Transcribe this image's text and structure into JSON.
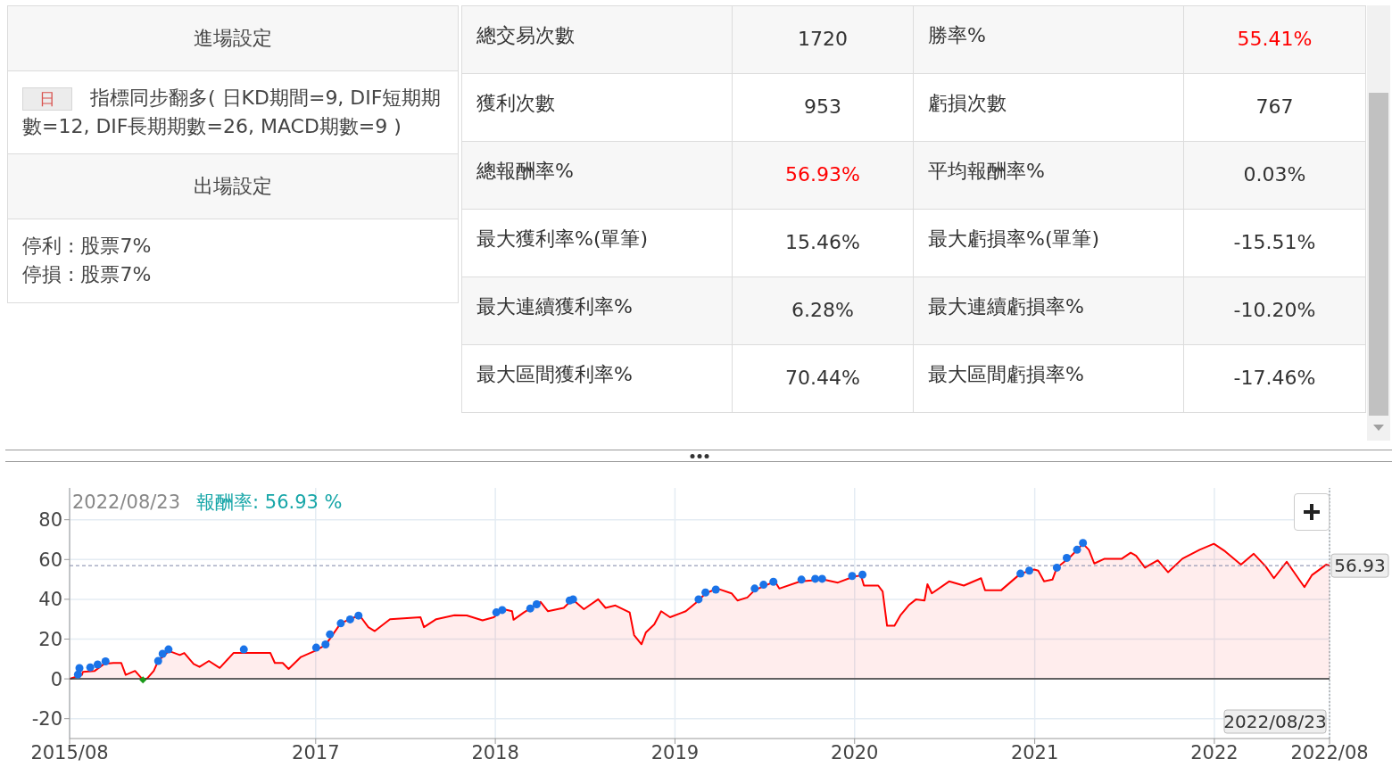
{
  "chart_data": [
    {
      "type": "other",
      "annotations": [
        "進場設定",
        "日",
        "指標同步翻多( 日KD期間=9, DIF短期期數=12, DIF長期期數=26, MACD期數=9 )",
        "出場設定",
        "停利 : 股票7%",
        "停損 : 股票7%",
        "總交易次數",
        "1720",
        "勝率%",
        "55.41%",
        "獲利次數",
        "953",
        "虧損次數",
        "767",
        "總報酬率%",
        "56.93%",
        "平均報酬率%",
        "0.03%",
        "最大獲利率%(單筆)",
        "15.46%",
        "最大虧損率%(單筆)",
        "-15.51%",
        "最大連續獲利率%",
        "6.28%",
        "最大連續虧損率%",
        "-10.20%",
        "最大區間獲利率%",
        "70.44%",
        "最大區間虧損率%",
        "-17.46%"
      ],
      "colors": [
        "#333333",
        "#333333",
        "#333333",
        "#ff0000",
        "#333333",
        "#333333",
        "#333333",
        "#333333",
        "#333333",
        "#ff0000",
        "#333333",
        "#333333",
        "#333333",
        "#333333",
        "#333333",
        "#333333",
        "#333333",
        "#333333",
        "#333333",
        "#333333",
        "#333333",
        "#333333",
        "#333333",
        "#333333"
      ]
    },
    {
      "type": "line",
      "annotations": [
        "2022/08/23",
        "報酬率: 56.93 %"
      ],
      "xlim": [
        "2015-08-20",
        "2022-08-23"
      ],
      "xticks": [
        {
          "value": "2015-08-20",
          "label": "2015/08"
        },
        {
          "value": "2017-01-01",
          "label": "2017"
        },
        {
          "value": "2018-01-01",
          "label": "2018"
        },
        {
          "value": "2019-01-01",
          "label": "2019"
        },
        {
          "value": "2020-01-01",
          "label": "2020"
        },
        {
          "value": "2021-01-01",
          "label": "2021"
        },
        {
          "value": "2022-01-01",
          "label": "2022"
        },
        {
          "value": "2022-08-23",
          "label": "2022/08"
        }
      ],
      "ylim": [
        -30,
        96
      ],
      "yticks": [
        -20,
        0,
        20,
        40,
        60,
        80
      ],
      "grid": true,
      "ref_lines": [
        {
          "axis": "y",
          "value": 0,
          "color": "#333333",
          "line_style": "solid"
        },
        {
          "axis": "y",
          "value": 56.93,
          "label": "56.93",
          "color": "#7f86a8",
          "line_style": "dashed"
        },
        {
          "axis": "x",
          "value": "2022-08-23",
          "label": "2022/08/23",
          "color": "#888888",
          "line_style": "dotted"
        }
      ],
      "series": [
        {
          "type": "area",
          "color": "#ff0000",
          "x": [
            "2015-08-20",
            "2015-09-14",
            "2015-09-16",
            "2015-10-10",
            "2015-10-29",
            "2015-11-17",
            "2015-12-03",
            "2015-12-12",
            "2015-12-31",
            "2016-01-16",
            "2016-01-25",
            "2016-02-07",
            "2016-02-16",
            "2016-03-09",
            "2016-03-31",
            "2016-04-09",
            "2016-04-28",
            "2016-05-10",
            "2016-05-29",
            "2016-06-20",
            "2016-07-18",
            "2016-08-18",
            "2016-10-01",
            "2016-10-10",
            "2016-10-26",
            "2016-11-07",
            "2016-12-02",
            "2016-12-30",
            "2017-01-21",
            "2017-02-21",
            "2017-03-31",
            "2017-04-18",
            "2017-05-01",
            "2017-06-01",
            "2017-08-02",
            "2017-08-09",
            "2017-09-03",
            "2017-10-10",
            "2017-11-04",
            "2017-12-06",
            "2017-12-29",
            "2018-01-18",
            "2018-02-04",
            "2018-02-07",
            "2018-02-28",
            "2018-04-03",
            "2018-04-18",
            "2018-05-20",
            "2018-06-07",
            "2018-06-30",
            "2018-07-29",
            "2018-08-13",
            "2018-09-02",
            "2018-10-01",
            "2018-10-10",
            "2018-10-25",
            "2018-11-03",
            "2018-11-20",
            "2018-12-04",
            "2018-12-22",
            "2019-01-23",
            "2019-02-15",
            "2019-03-04",
            "2019-03-28",
            "2019-04-26",
            "2019-05-08",
            "2019-05-28",
            "2019-06-12",
            "2019-07-23",
            "2019-08-01",
            "2019-09-13",
            "2019-10-30",
            "2019-11-28",
            "2019-12-30",
            "2020-01-14",
            "2020-01-20",
            "2020-02-18",
            "2020-02-27",
            "2020-03-07",
            "2020-03-22",
            "2020-04-03",
            "2020-04-20",
            "2020-05-05",
            "2020-05-22",
            "2020-05-28",
            "2020-06-06",
            "2020-07-11",
            "2020-08-10",
            "2020-09-14",
            "2020-09-22",
            "2020-10-25",
            "2020-12-03",
            "2020-12-31",
            "2021-01-08",
            "2021-01-20",
            "2021-02-06",
            "2021-02-15",
            "2021-03-13",
            "2021-04-09",
            "2021-04-21",
            "2021-05-02",
            "2021-05-23",
            "2021-06-27",
            "2021-07-15",
            "2021-07-26",
            "2021-08-13",
            "2021-09-08",
            "2021-09-29",
            "2021-10-28",
            "2021-12-02",
            "2021-12-31",
            "2022-01-23",
            "2022-02-24",
            "2022-03-22",
            "2022-04-15",
            "2022-05-02",
            "2022-05-28",
            "2022-07-03",
            "2022-07-18",
            "2022-08-16",
            "2022-08-23"
          ],
          "values": [
            0,
            2,
            3.5,
            4,
            7.5,
            8,
            8,
            2,
            4,
            -0.5,
            0.3,
            4,
            9,
            14,
            12,
            13,
            7.5,
            6,
            9,
            5.5,
            13,
            13,
            13,
            8,
            8,
            5,
            11,
            14,
            17,
            28,
            32,
            26,
            24,
            30,
            31,
            26,
            30,
            32,
            31.9,
            29.4,
            31,
            35,
            34,
            29.7,
            33.4,
            38.7,
            34,
            35.7,
            40,
            35,
            40,
            35.7,
            36.9,
            33.4,
            22,
            17.4,
            23.4,
            27.4,
            34,
            31,
            34,
            38.7,
            43,
            45.4,
            43,
            39.4,
            40.9,
            44.6,
            49,
            45.4,
            49,
            49.9,
            48.4,
            51.4,
            52,
            46.9,
            46.9,
            43.9,
            26.7,
            26.7,
            31.9,
            37,
            40,
            39.4,
            47.6,
            43,
            49,
            46.9,
            50.6,
            44.6,
            44.6,
            52.9,
            55,
            54.4,
            49,
            49.9,
            55.9,
            61,
            67.9,
            64.9,
            58,
            60.4,
            60.4,
            63.4,
            61.9,
            55.9,
            59.6,
            53.6,
            60.4,
            64.9,
            67.9,
            64.1,
            57.4,
            62.9,
            56.6,
            50.6,
            58.9,
            46.1,
            52.1,
            57.4,
            56.93
          ]
        },
        {
          "type": "scatter",
          "color": "#1a73e8",
          "marker": "circle",
          "x": [
            "2015-09-06",
            "2015-09-09",
            "2015-10-01",
            "2015-10-16",
            "2015-11-01",
            "2016-02-16",
            "2016-02-25",
            "2016-03-08",
            "2016-08-08",
            "2017-01-02",
            "2017-01-21",
            "2017-01-30",
            "2017-02-21",
            "2017-03-12",
            "2017-03-29",
            "2018-01-03",
            "2018-01-15",
            "2018-03-13",
            "2018-03-26",
            "2018-06-01",
            "2018-06-08",
            "2019-02-18",
            "2019-03-04",
            "2019-03-25",
            "2019-06-12",
            "2019-06-30",
            "2019-07-20",
            "2019-09-15",
            "2019-10-13",
            "2019-10-27",
            "2019-12-27",
            "2020-01-17",
            "2020-12-03",
            "2020-12-21",
            "2021-02-15",
            "2021-03-07",
            "2021-03-28",
            "2021-04-09"
          ],
          "values": [
            2.2,
            5.4,
            5.8,
            7.2,
            8.8,
            9,
            12.6,
            14.8,
            14.8,
            15.7,
            17.3,
            22.4,
            27.9,
            29.9,
            31.8,
            33.4,
            34.6,
            35.4,
            37.5,
            39.4,
            40,
            40,
            43.4,
            44.9,
            45.4,
            47.3,
            48.8,
            49.9,
            50.3,
            50.3,
            51.7,
            52.4,
            52.9,
            54.4,
            55.9,
            60.8,
            64.9,
            68.3
          ]
        },
        {
          "type": "scatter",
          "color": "#1a9a1a",
          "marker": "diamond",
          "x": [
            "2016-01-16"
          ],
          "values": [
            -0.5
          ]
        }
      ]
    }
  ]
}
